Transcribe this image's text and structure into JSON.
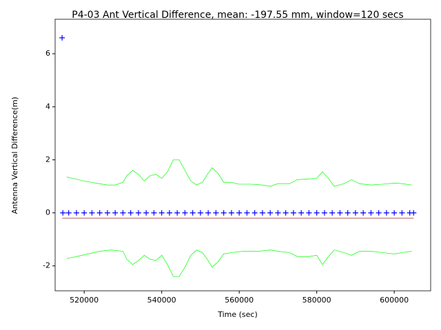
{
  "chart_data": {
    "type": "line",
    "title": "P4-03 Ant Vertical Difference, mean: -197.55 mm, window=120 secs",
    "x_label": "Time (sec)",
    "y_label": "Antenna Vertical Difference(m)",
    "xlim": [
      512500,
      609400
    ],
    "ylim": [
      -2.94,
      7.3
    ],
    "xticks": [
      520000,
      540000,
      560000,
      580000,
      600000
    ],
    "yticks": [
      -2,
      0,
      2,
      4,
      6
    ],
    "series": [
      {
        "style": "line",
        "color": "#00ff00",
        "x": [
          515500,
          517000,
          520000,
          523000,
          526000,
          528000,
          530000,
          531000,
          532500,
          534000,
          535500,
          537000,
          538500,
          540000,
          541500,
          543000,
          544500,
          546000,
          547500,
          549000,
          550500,
          552000,
          553000,
          554500,
          556000,
          558000,
          560000,
          563000,
          566000,
          568000,
          570000,
          573000,
          575000,
          578000,
          580000,
          581500,
          583000,
          584500,
          587000,
          589000,
          591000,
          594000,
          597000,
          600000,
          602000,
          604500
        ],
        "values": [
          1.35,
          1.3,
          1.2,
          1.12,
          1.05,
          1.05,
          1.15,
          1.4,
          1.6,
          1.45,
          1.2,
          1.4,
          1.45,
          1.3,
          1.55,
          2.0,
          2.0,
          1.6,
          1.2,
          1.05,
          1.15,
          1.5,
          1.7,
          1.5,
          1.15,
          1.15,
          1.08,
          1.08,
          1.05,
          1.0,
          1.1,
          1.1,
          1.25,
          1.28,
          1.3,
          1.55,
          1.3,
          1.0,
          1.1,
          1.25,
          1.1,
          1.05,
          1.08,
          1.12,
          1.1,
          1.05
        ]
      },
      {
        "style": "line",
        "color": "#00ff00",
        "x": [
          515500,
          518000,
          521000,
          524000,
          527000,
          530000,
          531000,
          532500,
          534000,
          535500,
          537000,
          538500,
          540000,
          541500,
          543000,
          544500,
          546000,
          547500,
          549000,
          550500,
          552000,
          553000,
          554500,
          556000,
          558000,
          561000,
          565000,
          568000,
          570000,
          573000,
          575000,
          578000,
          580000,
          581500,
          583000,
          584500,
          587000,
          589000,
          591000,
          594000,
          597000,
          600000,
          602000,
          604500
        ],
        "values": [
          -1.72,
          -1.65,
          -1.55,
          -1.45,
          -1.4,
          -1.45,
          -1.75,
          -1.95,
          -1.8,
          -1.6,
          -1.75,
          -1.8,
          -1.6,
          -1.95,
          -2.4,
          -2.4,
          -2.05,
          -1.6,
          -1.4,
          -1.5,
          -1.8,
          -2.05,
          -1.85,
          -1.55,
          -1.5,
          -1.45,
          -1.45,
          -1.4,
          -1.45,
          -1.5,
          -1.65,
          -1.65,
          -1.6,
          -1.95,
          -1.65,
          -1.4,
          -1.5,
          -1.6,
          -1.45,
          -1.45,
          -1.5,
          -1.55,
          -1.5,
          -1.45
        ]
      },
      {
        "style": "line",
        "color": "#8b0000",
        "x": [
          514300,
          605000
        ],
        "values": [
          -0.19755,
          -0.19755
        ]
      },
      {
        "style": "marker",
        "color": "#0000ff",
        "x": [
          514300,
          514500,
          516000,
          518000,
          520000,
          522000,
          524000,
          526000,
          528000,
          530000,
          532000,
          534000,
          536000,
          538000,
          540000,
          542000,
          544000,
          546000,
          548000,
          550000,
          552000,
          554000,
          556000,
          558000,
          560000,
          562000,
          564000,
          566000,
          568000,
          570000,
          572000,
          574000,
          576000,
          578000,
          580000,
          582000,
          584000,
          586000,
          588000,
          590000,
          592000,
          594000,
          596000,
          598000,
          600000,
          602000,
          604000,
          605000
        ],
        "values": [
          6.6,
          0,
          0,
          0,
          0,
          0,
          0,
          0,
          0,
          0,
          0,
          0,
          0,
          0,
          0,
          0,
          0,
          0,
          0,
          0,
          0,
          0,
          0,
          0,
          0,
          0,
          0,
          0,
          0,
          0,
          0,
          0,
          0,
          0,
          0,
          0,
          0,
          0,
          0,
          0,
          0,
          0,
          0,
          0,
          0,
          0,
          0,
          0
        ]
      }
    ]
  }
}
